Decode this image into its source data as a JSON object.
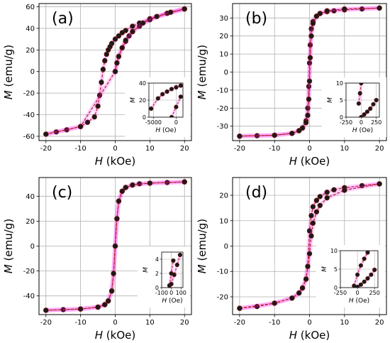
{
  "chart_data": [
    {
      "type": "scatter",
      "panel_label": "(a)",
      "xlabel_sym": "H",
      "xlabel_unit": " (kOe)",
      "ylabel_sym": "M",
      "ylabel_unit": " (emu/g)",
      "xlim": [
        -22,
        22
      ],
      "ylim": [
        -64,
        63
      ],
      "xticks": [
        -20,
        -10,
        0,
        10,
        20
      ],
      "yticks": [
        -60,
        -40,
        -20,
        0,
        20,
        40,
        60
      ],
      "grid": true,
      "colors": {
        "marker": "#1a1a1a",
        "marker_edge": "#6b1410",
        "line": "#b22222",
        "band": "#ff00ff"
      },
      "series": [
        {
          "kind": "branch_down",
          "x": [
            20,
            15,
            10,
            7,
            5,
            3,
            2,
            1,
            0,
            -1,
            -1.5,
            -2,
            -2.5,
            -3,
            -3.5,
            -4,
            -4.5,
            -5,
            -6,
            -8,
            -10,
            -14,
            -17,
            -20
          ],
          "y": [
            58,
            54,
            49,
            45,
            42,
            38,
            36,
            33,
            30,
            26,
            23,
            20,
            16,
            10,
            2,
            -10,
            -22,
            -32,
            -42,
            -47,
            -51,
            -54,
            -56,
            -58
          ]
        },
        {
          "kind": "branch_up",
          "x": [
            -20,
            -10,
            0,
            0.5,
            1,
            2,
            3,
            4,
            5,
            7,
            10,
            15,
            20
          ],
          "y": [
            -58,
            -51,
            0,
            8,
            14,
            22,
            28,
            33,
            37,
            42,
            48,
            54,
            58
          ]
        },
        {
          "kind": "virgin",
          "x": [
            0,
            0.5,
            1,
            2,
            3,
            5,
            8,
            12,
            16,
            20
          ],
          "y": [
            0,
            8,
            14,
            22,
            29,
            37,
            45,
            51,
            55,
            58
          ]
        }
      ],
      "inset": {
        "xlabel_sym": "H",
        "xlabel_unit": " (Oe)",
        "ylabel_sym": "M",
        "xlim": [
          -6000,
          1500
        ],
        "ylim": [
          0,
          40
        ],
        "xticks": [
          -5000,
          0
        ],
        "yticks": [
          0,
          20,
          40
        ],
        "series": [
          {
            "x": [
              -5500,
              -4000,
              -3000,
              -2000,
              -1000,
              0,
              1000
            ],
            "y": [
              10,
              22,
              27,
              30,
              33,
              35,
              37
            ]
          },
          {
            "x": [
              -1000,
              0,
              1000
            ],
            "y": [
              0,
              12,
              24
            ]
          }
        ]
      }
    },
    {
      "type": "scatter",
      "panel_label": "(b)",
      "xlabel_sym": "H",
      "xlabel_unit": " (kOe)",
      "ylabel_sym": "M",
      "ylabel_unit": " (emu/g)",
      "xlim": [
        -22,
        22
      ],
      "ylim": [
        -38,
        38
      ],
      "xticks": [
        -20,
        -10,
        0,
        10,
        20
      ],
      "yticks": [
        -30,
        -20,
        -10,
        0,
        10,
        20,
        30
      ],
      "grid": true,
      "colors": {
        "marker": "#1a1a1a",
        "marker_edge": "#6b1410",
        "line": "#b22222",
        "band": "#ff00ff"
      },
      "series": [
        {
          "kind": "branch_down",
          "x": [
            20,
            15,
            10,
            7,
            5,
            3,
            2,
            1,
            0.5,
            0.2,
            0,
            -0.2,
            -0.5,
            -1,
            -2,
            -3,
            -5,
            -10,
            -15,
            -20
          ],
          "y": [
            35.5,
            35,
            34.5,
            34,
            33.5,
            32.5,
            31,
            28,
            24,
            15,
            5,
            -8,
            -20,
            -27,
            -31,
            -32.5,
            -34,
            -35,
            -35.3,
            -35.5
          ]
        },
        {
          "kind": "branch_up",
          "x": [
            -20,
            -10,
            -5,
            -3,
            -2,
            -1,
            -0.5,
            -0.2,
            0,
            0.2,
            0.5,
            1,
            2,
            3,
            5,
            10,
            20
          ],
          "y": [
            -35.5,
            -35,
            -34,
            -32.5,
            -31,
            -28,
            -24,
            -15,
            -5,
            8,
            20,
            27,
            31,
            32.5,
            34,
            35,
            35.5
          ]
        }
      ],
      "inset": {
        "xlabel_sym": "H",
        "xlabel_unit": " (Oe)",
        "ylabel_sym": "M",
        "xlim": [
          -250,
          300
        ],
        "ylim": [
          0,
          10
        ],
        "xticks": [
          -250,
          0,
          250
        ],
        "yticks": [
          0,
          5,
          10
        ],
        "series": [
          {
            "x": [
              -40,
              -20,
              0
            ],
            "y": [
              4,
              7,
              10
            ]
          },
          {
            "x": [
              0,
              50,
              100,
              150,
              200,
              250
            ],
            "y": [
              0,
              0.8,
              1.6,
              2.5,
              3.8,
              5
            ]
          }
        ]
      }
    },
    {
      "type": "scatter",
      "panel_label": "(c)",
      "xlabel_sym": "H",
      "xlabel_unit": " (kOe)",
      "ylabel_sym": "M",
      "ylabel_unit": " (emu/g)",
      "xlim": [
        -22,
        22
      ],
      "ylim": [
        -55,
        55
      ],
      "xticks": [
        -20,
        -10,
        0,
        10,
        20
      ],
      "yticks": [
        -40,
        -20,
        0,
        20,
        40
      ],
      "grid": true,
      "colors": {
        "marker": "#1a1a1a",
        "marker_edge": "#6b1410",
        "line": "#b22222",
        "band": "#ff00ff"
      },
      "series": [
        {
          "kind": "branch_down",
          "x": [
            20,
            15,
            10,
            7,
            5,
            3,
            2,
            1,
            0.5,
            0,
            -0.5,
            -1,
            -2,
            -3,
            -5,
            -10,
            -15,
            -20
          ],
          "y": [
            51.5,
            51,
            50.5,
            50,
            49,
            47,
            44,
            36,
            22,
            0,
            -22,
            -36,
            -44,
            -47,
            -49,
            -50.5,
            -51,
            -51.5
          ]
        },
        {
          "kind": "branch_up",
          "x": [
            -20,
            -10,
            -5,
            -3,
            -2,
            -1,
            -0.5,
            0,
            0.5,
            1,
            2,
            3,
            5,
            10,
            20
          ],
          "y": [
            -51.5,
            -50.5,
            -49,
            -47,
            -44,
            -36,
            -22,
            0,
            22,
            36,
            44,
            47,
            49,
            50.5,
            51.5
          ]
        }
      ],
      "inset": {
        "xlabel_sym": "H",
        "xlabel_unit": " (Oe)",
        "ylabel_sym": "M",
        "xlim": [
          -100,
          120
        ],
        "ylim": [
          0,
          5
        ],
        "xticks": [
          -100,
          0,
          100
        ],
        "yticks": [
          0,
          2,
          4
        ],
        "series": [
          {
            "x": [
              -20,
              0,
              20
            ],
            "y": [
              0.3,
              2.0,
              3.8
            ]
          },
          {
            "x": [
              0,
              30,
              60,
              90
            ],
            "y": [
              0.5,
              1.8,
              3.2,
              4.6
            ]
          }
        ]
      }
    },
    {
      "type": "scatter",
      "panel_label": "(d)",
      "xlabel_sym": "H",
      "xlabel_unit": " (kOe)",
      "ylabel_sym": "M",
      "ylabel_unit": " (emu/g)",
      "xlim": [
        -22,
        22
      ],
      "ylim": [
        -27,
        27
      ],
      "xticks": [
        -20,
        -10,
        0,
        10,
        20
      ],
      "yticks": [
        -20,
        -10,
        0,
        10,
        20
      ],
      "grid": true,
      "colors": {
        "marker": "#1a1a1a",
        "marker_edge": "#6b1410",
        "line": "#b22222",
        "band": "#ff00ff"
      },
      "series": [
        {
          "kind": "branch_down",
          "x": [
            20,
            15,
            10,
            7,
            5,
            3,
            2,
            1,
            0.5,
            0,
            -0.5,
            -1,
            -2,
            -3,
            -5,
            -10,
            -15,
            -20
          ],
          "y": [
            24.5,
            23.8,
            23,
            22.2,
            21.2,
            19.5,
            18,
            15.5,
            12,
            6,
            -8,
            -13,
            -16.5,
            -18.5,
            -20.5,
            -22.5,
            -23.8,
            -24.5
          ]
        },
        {
          "kind": "branch_up",
          "x": [
            -20,
            -10,
            -5,
            -3,
            -2,
            -1,
            -0.5,
            0,
            0.5,
            1,
            2,
            3,
            5,
            10,
            20
          ],
          "y": [
            -24.5,
            -22.5,
            -20.5,
            -18.5,
            -16.5,
            -13,
            -8,
            -3,
            4,
            9,
            13.5,
            16,
            19,
            22,
            24.5
          ]
        }
      ],
      "inset": {
        "xlabel_sym": "H",
        "xlabel_unit": " (Oe)",
        "ylabel_sym": "M",
        "xlim": [
          -250,
          300
        ],
        "ylim": [
          0,
          10
        ],
        "xticks": [
          -250,
          0,
          250
        ],
        "yticks": [
          0,
          5,
          10
        ],
        "series": [
          {
            "x": [
              -50,
              0,
              50,
              100,
              150
            ],
            "y": [
              0.5,
              3.5,
              6,
              7.8,
              9.5
            ]
          },
          {
            "x": [
              0,
              50,
              100,
              150,
              200,
              250
            ],
            "y": [
              0.2,
              0.8,
              1.6,
              2.5,
              3.5,
              4.8
            ]
          }
        ]
      }
    }
  ]
}
